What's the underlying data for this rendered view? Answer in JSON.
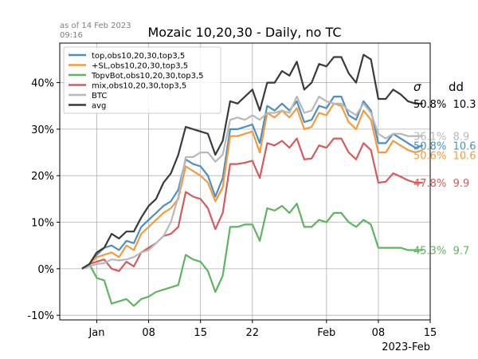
{
  "timestamp": {
    "line1": "as of 14 Feb 2023",
    "line2": "09:16"
  },
  "chart_data": {
    "type": "line",
    "title": "Mozaic 10,20,30 - Daily, no TC",
    "x_tick_labels": [
      {
        "x": "2023-01-01",
        "label": "Jan"
      },
      {
        "x": "2023-01-08",
        "label": "08"
      },
      {
        "x": "2023-01-15",
        "label": "15"
      },
      {
        "x": "2023-01-22",
        "label": "22"
      },
      {
        "x": "2023-02-01",
        "label": "Feb"
      },
      {
        "x": "2023-02-08",
        "label": "08"
      },
      {
        "x": "2023-02-15",
        "label": "15"
      }
    ],
    "x_offset_label": "2023-Feb",
    "xlim": [
      "2022-12-27",
      "2023-02-15"
    ],
    "ylim": [
      -0.11,
      0.485
    ],
    "y_ticks": [
      {
        "v": -0.1,
        "label": "-10%"
      },
      {
        "v": 0,
        "label": "0%"
      },
      {
        "v": 0.1,
        "label": "10%"
      },
      {
        "v": 0.2,
        "label": "20%"
      },
      {
        "v": 0.3,
        "label": "30%"
      },
      {
        "v": 0.4,
        "label": "40%"
      }
    ],
    "grid": true,
    "legend_position": "top-left",
    "stats_headers": {
      "sigma": "σ",
      "dd": "dd"
    },
    "x": [
      "2022-12-30",
      "2022-12-31",
      "2023-01-01",
      "2023-01-02",
      "2023-01-03",
      "2023-01-04",
      "2023-01-05",
      "2023-01-06",
      "2023-01-07",
      "2023-01-08",
      "2023-01-09",
      "2023-01-10",
      "2023-01-11",
      "2023-01-12",
      "2023-01-13",
      "2023-01-14",
      "2023-01-15",
      "2023-01-16",
      "2023-01-17",
      "2023-01-18",
      "2023-01-19",
      "2023-01-20",
      "2023-01-21",
      "2023-01-22",
      "2023-01-23",
      "2023-01-24",
      "2023-01-25",
      "2023-01-26",
      "2023-01-27",
      "2023-01-28",
      "2023-01-29",
      "2023-01-30",
      "2023-01-31",
      "2023-02-01",
      "2023-02-02",
      "2023-02-03",
      "2023-02-04",
      "2023-02-05",
      "2023-02-06",
      "2023-02-07",
      "2023-02-08",
      "2023-02-09",
      "2023-02-10",
      "2023-02-11",
      "2023-02-12",
      "2023-02-13",
      "2023-02-14"
    ],
    "series": [
      {
        "name": "top,obs10,20,30,top3,5",
        "color": "#4c8fc4",
        "stats": "50.8%  10.6",
        "values": [
          0.0,
          0.01,
          0.03,
          0.045,
          0.05,
          0.04,
          0.06,
          0.055,
          0.09,
          0.105,
          0.12,
          0.135,
          0.145,
          0.17,
          0.235,
          0.225,
          0.22,
          0.2,
          0.155,
          0.195,
          0.3,
          0.3,
          0.305,
          0.31,
          0.27,
          0.35,
          0.34,
          0.355,
          0.34,
          0.36,
          0.315,
          0.32,
          0.35,
          0.345,
          0.37,
          0.37,
          0.33,
          0.32,
          0.36,
          0.34,
          0.27,
          0.27,
          0.29,
          0.28,
          0.27,
          0.26,
          0.265
        ]
      },
      {
        "name": "+SL,obs10,20,30,top3,5",
        "color": "#f59a3c",
        "stats": "50.6%  10.6",
        "values": [
          0.0,
          0.01,
          0.025,
          0.03,
          0.035,
          0.025,
          0.05,
          0.04,
          0.075,
          0.09,
          0.105,
          0.12,
          0.13,
          0.15,
          0.22,
          0.21,
          0.2,
          0.185,
          0.145,
          0.175,
          0.285,
          0.285,
          0.29,
          0.295,
          0.25,
          0.335,
          0.325,
          0.34,
          0.325,
          0.345,
          0.3,
          0.305,
          0.335,
          0.33,
          0.355,
          0.35,
          0.315,
          0.3,
          0.34,
          0.32,
          0.25,
          0.25,
          0.275,
          0.265,
          0.255,
          0.25,
          0.255
        ]
      },
      {
        "name": "TopvBot,obs10,20,30,top3,5",
        "color": "#5db55d",
        "stats": "45.3%  9.7",
        "values": [
          0.0,
          0.01,
          -0.02,
          -0.025,
          -0.075,
          -0.07,
          -0.065,
          -0.08,
          -0.065,
          -0.06,
          -0.05,
          -0.045,
          -0.04,
          -0.035,
          0.03,
          0.02,
          0.015,
          -0.005,
          -0.05,
          -0.015,
          0.09,
          0.09,
          0.095,
          0.095,
          0.06,
          0.13,
          0.125,
          0.135,
          0.12,
          0.14,
          0.09,
          0.09,
          0.105,
          0.1,
          0.12,
          0.12,
          0.1,
          0.09,
          0.105,
          0.095,
          0.045,
          0.045,
          0.045,
          0.045,
          0.04,
          0.04,
          0.04
        ]
      },
      {
        "name": "mix,obs10,20,30,top3,5",
        "color": "#d75a5a",
        "stats": "47.8%  9.9",
        "values": [
          0.0,
          0.01,
          0.015,
          0.02,
          0.0,
          -0.005,
          0.015,
          0.005,
          0.035,
          0.045,
          0.055,
          0.07,
          0.075,
          0.09,
          0.165,
          0.155,
          0.15,
          0.13,
          0.085,
          0.12,
          0.225,
          0.225,
          0.228,
          0.232,
          0.195,
          0.27,
          0.265,
          0.275,
          0.26,
          0.28,
          0.235,
          0.237,
          0.265,
          0.26,
          0.28,
          0.28,
          0.25,
          0.235,
          0.27,
          0.255,
          0.185,
          0.187,
          0.205,
          0.198,
          0.19,
          0.185,
          0.185
        ]
      },
      {
        "name": "BTC",
        "color": "#b8b8b8",
        "stats": "36.1%  8.9",
        "values": [
          0.0,
          0.005,
          0.01,
          0.012,
          0.02,
          0.018,
          0.02,
          0.025,
          0.035,
          0.04,
          0.055,
          0.07,
          0.1,
          0.155,
          0.24,
          0.24,
          0.25,
          0.25,
          0.23,
          0.245,
          0.32,
          0.325,
          0.32,
          0.33,
          0.32,
          0.335,
          0.335,
          0.34,
          0.335,
          0.37,
          0.335,
          0.34,
          0.37,
          0.36,
          0.355,
          0.355,
          0.34,
          0.33,
          0.355,
          0.335,
          0.29,
          0.28,
          0.29,
          0.29,
          0.285,
          0.285,
          0.285
        ]
      },
      {
        "name": "avg",
        "color": "#3a3a3a",
        "stats": "50.8%  10.3",
        "values": [
          0.0,
          0.01,
          0.035,
          0.045,
          0.075,
          0.065,
          0.08,
          0.08,
          0.11,
          0.135,
          0.15,
          0.185,
          0.205,
          0.245,
          0.305,
          0.3,
          0.295,
          0.29,
          0.245,
          0.275,
          0.36,
          0.355,
          0.37,
          0.385,
          0.34,
          0.4,
          0.4,
          0.425,
          0.415,
          0.445,
          0.385,
          0.4,
          0.44,
          0.435,
          0.455,
          0.455,
          0.42,
          0.4,
          0.46,
          0.45,
          0.365,
          0.365,
          0.385,
          0.375,
          0.36,
          0.355,
          0.355
        ]
      }
    ]
  }
}
